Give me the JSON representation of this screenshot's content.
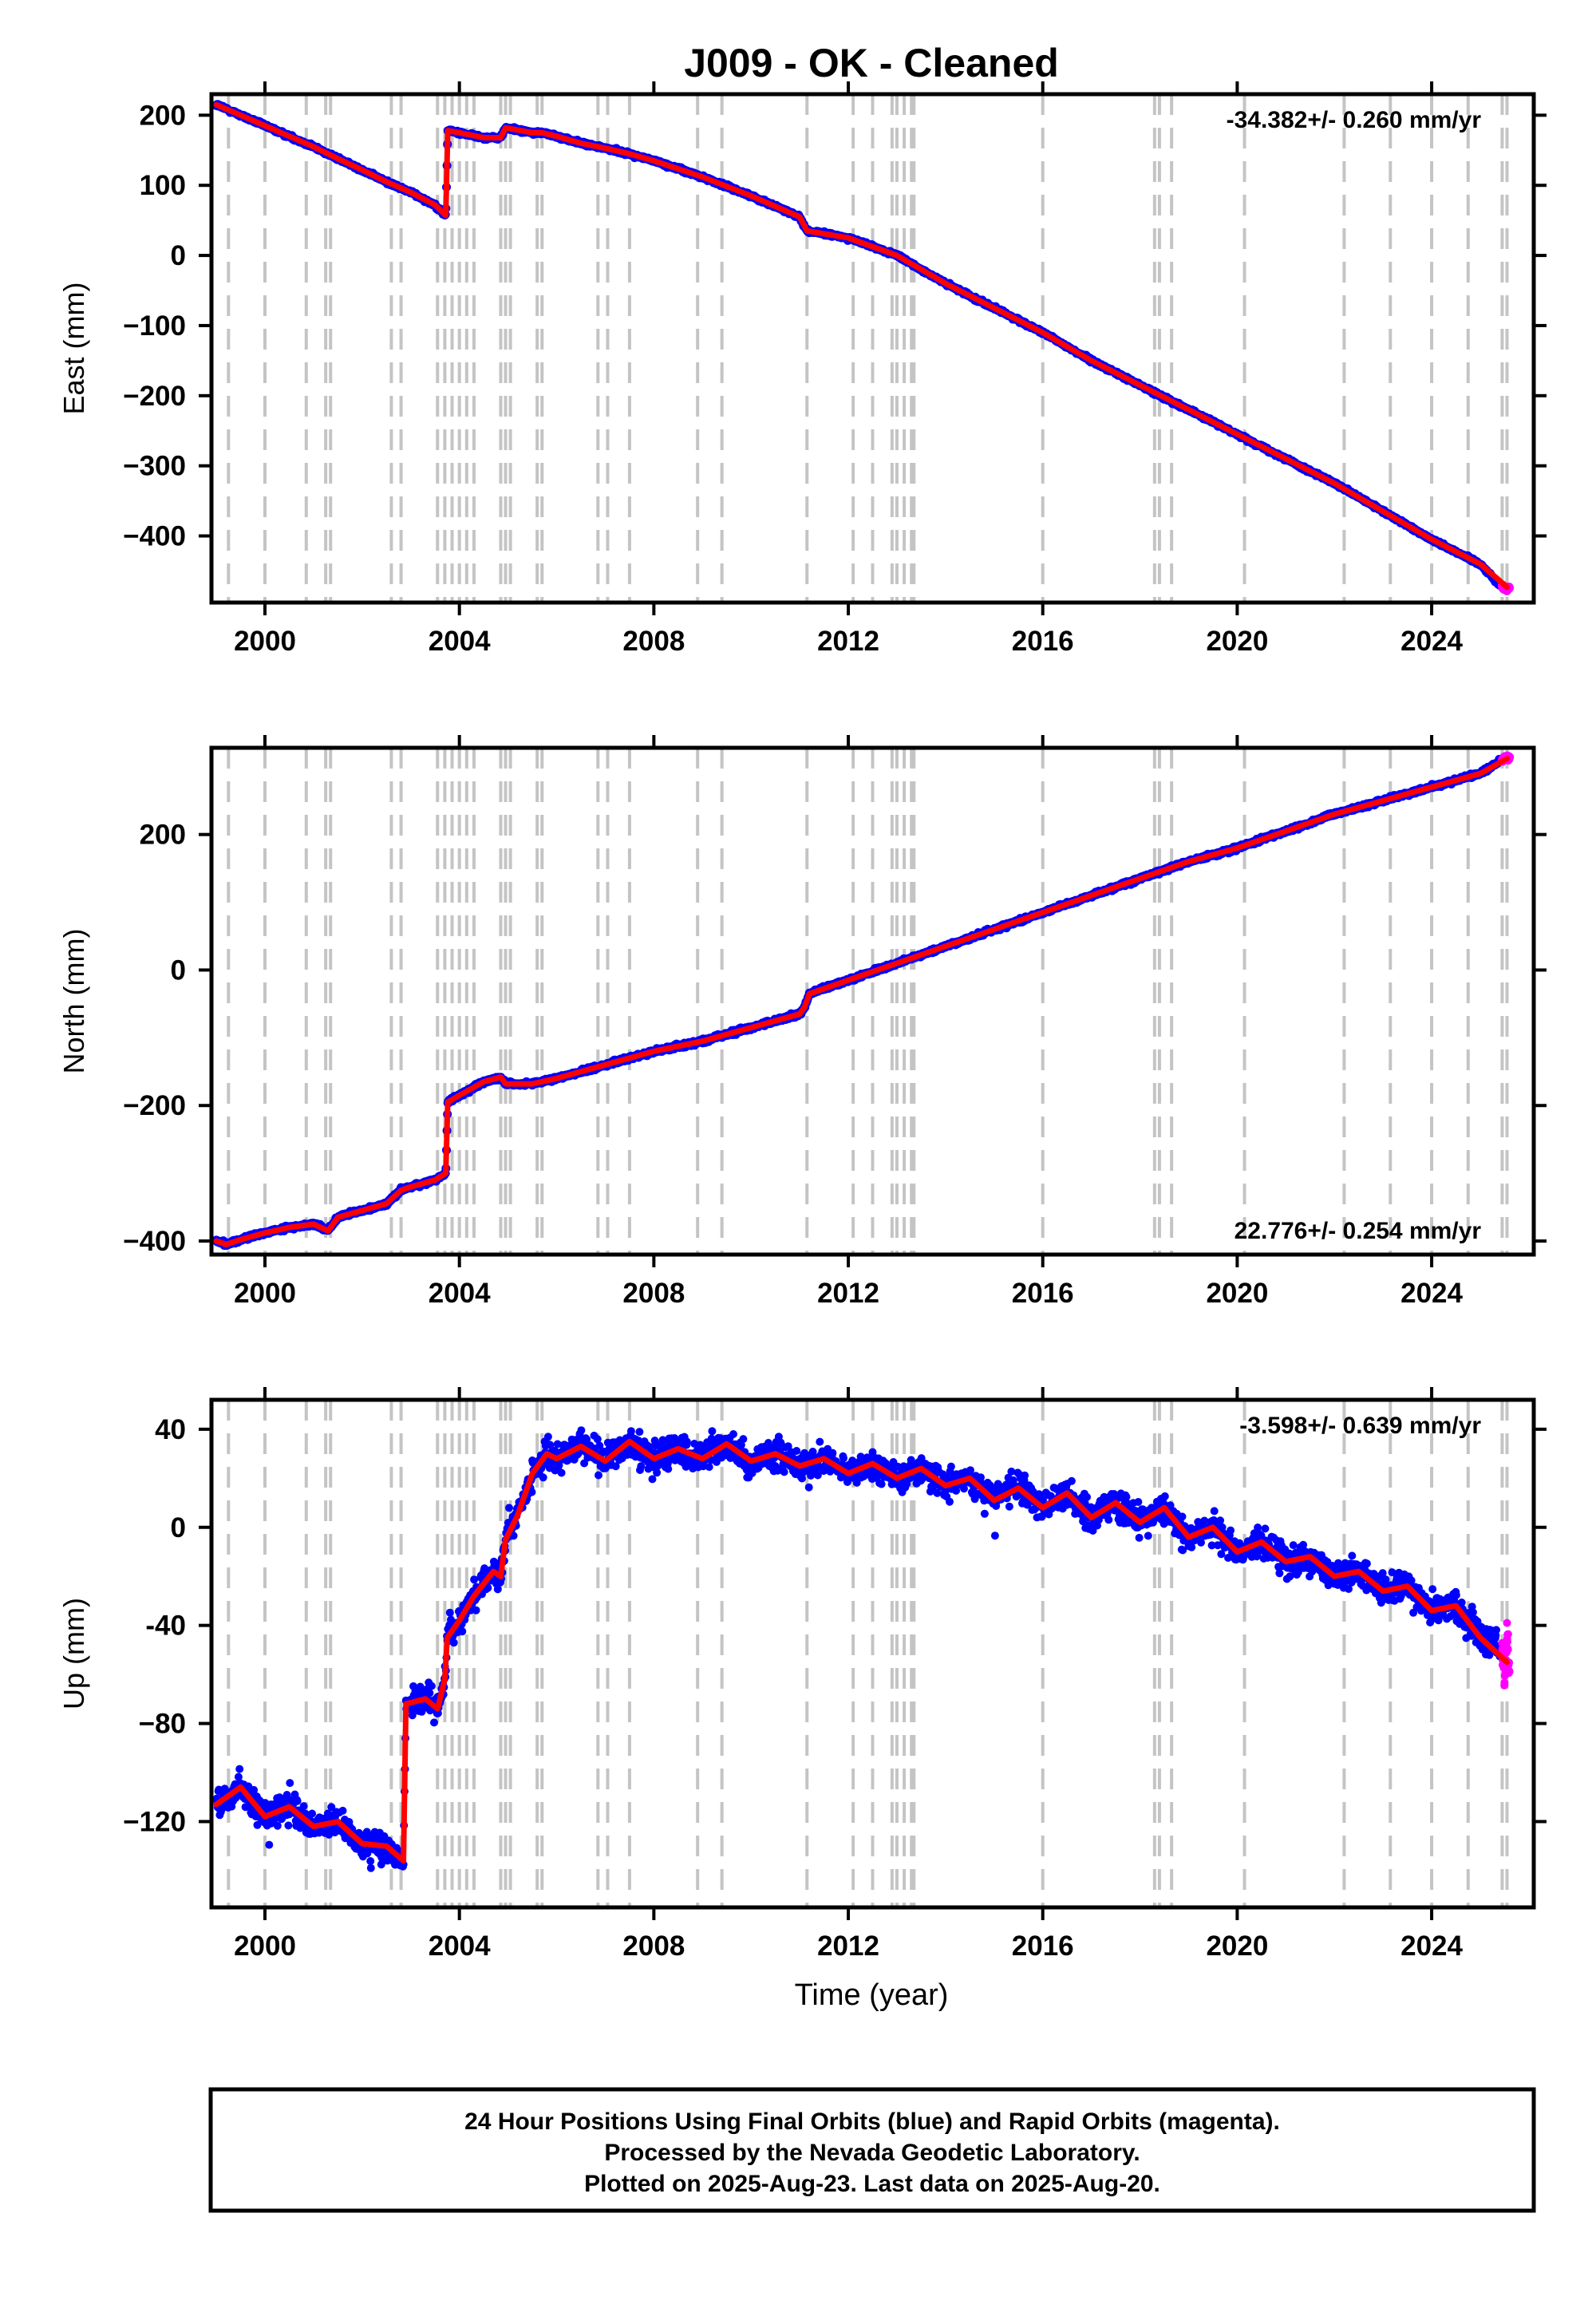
{
  "chart_data": {
    "type": "line",
    "title": "J009  - OK - Cleaned",
    "xlabel": "Time (year)",
    "xlim": [
      1998.9,
      2026.1
    ],
    "xticks": [
      2000,
      2004,
      2008,
      2012,
      2016,
      2020,
      2024
    ],
    "xtick_labels": [
      "2000",
      "2004",
      "2008",
      "2012",
      "2016",
      "2020",
      "2024"
    ],
    "grid": false,
    "event_lines": [
      1999.25,
      2000.0,
      2000.85,
      2001.25,
      2001.35,
      2002.6,
      2002.8,
      2003.55,
      2003.7,
      2003.85,
      2004.0,
      2004.15,
      2004.3,
      2004.85,
      2004.95,
      2005.05,
      2005.6,
      2005.7,
      2006.85,
      2007.05,
      2007.5,
      2008.9,
      2009.4,
      2011.15,
      2012.1,
      2012.5,
      2012.9,
      2013.0,
      2013.15,
      2013.3,
      2013.35,
      2016.0,
      2018.3,
      2018.4,
      2018.65,
      2020.15,
      2022.2,
      2023.15,
      2024.0,
      2024.75,
      2025.45,
      2025.55
    ],
    "panels": [
      {
        "id": "east",
        "ylabel": "East (mm)",
        "ylim": [
          -495,
          230
        ],
        "yticks": [
          200,
          100,
          0,
          -100,
          -200,
          -300,
          -400
        ],
        "ytick_labels": [
          "200",
          "100",
          "0",
          "−100",
          "−200",
          "−300",
          "−400"
        ],
        "rate_text": "-34.382+/- 0.260 mm/yr",
        "rate_position": "top-right",
        "series": [
          {
            "name": "Final Orbits",
            "color": "#0000ff",
            "scatter": 2.4,
            "x": [
              1999.0,
              1999.5,
              2000.0,
              2000.5,
              2001.0,
              2001.5,
              2002.0,
              2002.5,
              2003.0,
              2003.5,
              2003.72,
              2003.76,
              2004.0,
              2004.5,
              2004.85,
              2004.95,
              2005.5,
              2005.7,
              2006.0,
              2006.5,
              2007.0,
              2007.5,
              2008.0,
              2009.0,
              2010.0,
              2011.0,
              2011.15,
              2012.0,
              2013.0,
              2014.0,
              2015.0,
              2016.0,
              2017.0,
              2018.0,
              2019.0,
              2020.0,
              2021.0,
              2022.0,
              2023.0,
              2024.0,
              2025.0,
              2025.4
            ],
            "y": [
              215,
              200,
              185,
              170,
              155,
              138,
              122,
              105,
              90,
              72,
              57,
              178,
              175,
              168,
              168,
              182,
              175,
              175,
              170,
              160,
              153,
              145,
              135,
              112,
              85,
              55,
              35,
              25,
              0,
              -40,
              -75,
              -110,
              -150,
              -185,
              -220,
              -255,
              -290,
              -325,
              -365,
              -405,
              -440,
              -470
            ]
          },
          {
            "name": "Rapid Orbits",
            "color": "#ff00ff",
            "scatter": 3,
            "x": [
              2025.45,
              2025.5,
              2025.55,
              2025.6
            ],
            "y": [
              -472,
              -474,
              -475,
              -473
            ]
          }
        ],
        "model": {
          "color": "#ff0000",
          "x": [
            1999.0,
            1999.5,
            2000.0,
            2000.5,
            2001.0,
            2001.5,
            2002.0,
            2002.5,
            2003.0,
            2003.5,
            2003.72,
            2003.76,
            2004.0,
            2004.5,
            2004.85,
            2004.95,
            2005.5,
            2005.7,
            2006.0,
            2006.5,
            2007.0,
            2007.5,
            2008.0,
            2009.0,
            2010.0,
            2011.0,
            2011.15,
            2012.0,
            2013.0,
            2014.0,
            2015.0,
            2016.0,
            2017.0,
            2018.0,
            2019.0,
            2020.0,
            2021.0,
            2022.0,
            2023.0,
            2024.0,
            2025.0,
            2025.55
          ],
          "y": [
            215,
            200,
            185,
            170,
            155,
            138,
            122,
            105,
            90,
            72,
            57,
            178,
            175,
            168,
            168,
            182,
            175,
            175,
            170,
            160,
            153,
            145,
            135,
            112,
            85,
            55,
            35,
            25,
            0,
            -40,
            -75,
            -110,
            -150,
            -185,
            -220,
            -255,
            -290,
            -325,
            -365,
            -405,
            -440,
            -473
          ]
        }
      },
      {
        "id": "north",
        "ylabel": "North (mm)",
        "ylim": [
          -420,
          328
        ],
        "yticks": [
          200,
          0,
          -200,
          -400
        ],
        "ytick_labels": [
          "200",
          "0",
          "−200",
          "−400"
        ],
        "rate_text": "22.776+/- 0.254 mm/yr",
        "rate_position": "bottom-right",
        "series": [
          {
            "name": "Final Orbits",
            "color": "#0000ff",
            "scatter": 3,
            "x": [
              1999.0,
              1999.2,
              1999.5,
              2000.0,
              2000.5,
              2001.0,
              2001.3,
              2001.5,
              2002.0,
              2002.5,
              2002.8,
              2003.0,
              2003.5,
              2003.72,
              2003.76,
              2004.0,
              2004.5,
              2004.85,
              2004.95,
              2005.5,
              2006.0,
              2007.0,
              2008.0,
              2009.0,
              2010.0,
              2011.0,
              2011.1,
              2011.2,
              2012.0,
              2013.0,
              2014.0,
              2015.0,
              2016.0,
              2017.0,
              2018.0,
              2019.0,
              2020.0,
              2021.0,
              2022.0,
              2023.0,
              2024.0,
              2025.0,
              2025.4
            ],
            "y": [
              -400,
              -405,
              -398,
              -388,
              -380,
              -375,
              -385,
              -365,
              -355,
              -345,
              -325,
              -320,
              -310,
              -300,
              -195,
              -185,
              -165,
              -158,
              -168,
              -168,
              -160,
              -140,
              -120,
              -105,
              -85,
              -65,
              -55,
              -35,
              -15,
              10,
              35,
              60,
              85,
              110,
              135,
              160,
              180,
              205,
              230,
              250,
              270,
              290,
              308
            ]
          },
          {
            "name": "Rapid Orbits",
            "color": "#ff00ff",
            "scatter": 3,
            "x": [
              2025.45,
              2025.5,
              2025.55,
              2025.6
            ],
            "y": [
              310,
              312,
              314,
              313
            ]
          }
        ],
        "model": {
          "color": "#ff0000",
          "x": [
            1999.0,
            1999.2,
            1999.5,
            2000.0,
            2000.5,
            2001.0,
            2001.3,
            2001.5,
            2002.0,
            2002.5,
            2002.8,
            2003.0,
            2003.5,
            2003.72,
            2003.76,
            2004.0,
            2004.5,
            2004.85,
            2004.95,
            2005.5,
            2006.0,
            2007.0,
            2008.0,
            2009.0,
            2010.0,
            2011.0,
            2011.1,
            2011.2,
            2012.0,
            2013.0,
            2014.0,
            2015.0,
            2016.0,
            2017.0,
            2018.0,
            2019.0,
            2020.0,
            2021.0,
            2022.0,
            2023.0,
            2024.0,
            2025.0,
            2025.55
          ],
          "y": [
            -400,
            -405,
            -398,
            -388,
            -380,
            -375,
            -385,
            -365,
            -355,
            -345,
            -325,
            -320,
            -310,
            -300,
            -195,
            -185,
            -165,
            -158,
            -168,
            -168,
            -160,
            -140,
            -120,
            -105,
            -85,
            -65,
            -55,
            -35,
            -15,
            10,
            35,
            60,
            85,
            110,
            135,
            160,
            180,
            205,
            230,
            250,
            270,
            290,
            312
          ]
        }
      },
      {
        "id": "up",
        "ylabel": "Up (mm)",
        "ylim": [
          -155,
          52
        ],
        "yticks": [
          40,
          0,
          -40,
          -80,
          -120
        ],
        "ytick_labels": [
          "40",
          "0",
          "-40",
          "−80",
          "−120"
        ],
        "rate_text": "-3.598+/- 0.639 mm/yr",
        "rate_position": "top-right",
        "series": [
          {
            "name": "Final Orbits",
            "color": "#0000ff",
            "scatter": 6,
            "x": [
              1999.0,
              1999.5,
              2000.0,
              2000.5,
              2001.0,
              2001.5,
              2002.0,
              2002.5,
              2002.85,
              2002.9,
              2003.3,
              2003.55,
              2003.7,
              2003.75,
              2004.0,
              2004.3,
              2004.7,
              2004.85,
              2004.95,
              2005.2,
              2005.5,
              2005.8,
              2006.0,
              2006.5,
              2007.0,
              2007.5,
              2008.0,
              2008.5,
              2009.0,
              2009.5,
              2010.0,
              2010.5,
              2011.0,
              2011.5,
              2012.0,
              2012.5,
              2013.0,
              2013.5,
              2014.0,
              2014.5,
              2015.0,
              2015.5,
              2016.0,
              2016.5,
              2017.0,
              2017.5,
              2018.0,
              2018.5,
              2019.0,
              2019.5,
              2020.0,
              2020.5,
              2021.0,
              2021.5,
              2022.0,
              2022.5,
              2023.0,
              2023.5,
              2024.0,
              2024.5,
              2025.0,
              2025.4
            ],
            "y": [
              -113,
              -106,
              -118,
              -114,
              -122,
              -120,
              -129,
              -130,
              -136,
              -72,
              -70,
              -74,
              -62,
              -45,
              -38,
              -28,
              -18,
              -20,
              -5,
              5,
              22,
              30,
              28,
              33,
              27,
              35,
              28,
              32,
              28,
              34,
              27,
              30,
              25,
              28,
              22,
              26,
              20,
              24,
              17,
              20,
              11,
              16,
              8,
              14,
              4,
              10,
              2,
              8,
              -4,
              0,
              -10,
              -6,
              -14,
              -12,
              -20,
              -18,
              -26,
              -24,
              -34,
              -32,
              -45,
              -50
            ]
          },
          {
            "name": "Rapid Orbits",
            "color": "#ff00ff",
            "scatter": 8,
            "x": [
              2025.45,
              2025.5,
              2025.55,
              2025.6
            ],
            "y": [
              -52,
              -60,
              -46,
              -58
            ]
          }
        ],
        "model": {
          "color": "#ff0000",
          "x": [
            1999.0,
            1999.5,
            2000.0,
            2000.5,
            2001.0,
            2001.5,
            2002.0,
            2002.5,
            2002.85,
            2002.9,
            2003.3,
            2003.55,
            2003.7,
            2003.75,
            2004.0,
            2004.3,
            2004.7,
            2004.85,
            2004.95,
            2005.2,
            2005.5,
            2005.8,
            2006.0,
            2006.5,
            2007.0,
            2007.5,
            2008.0,
            2008.5,
            2009.0,
            2009.5,
            2010.0,
            2010.5,
            2011.0,
            2011.5,
            2012.0,
            2012.5,
            2013.0,
            2013.5,
            2014.0,
            2014.5,
            2015.0,
            2015.5,
            2016.0,
            2016.5,
            2017.0,
            2017.5,
            2018.0,
            2018.5,
            2019.0,
            2019.5,
            2020.0,
            2020.5,
            2021.0,
            2021.5,
            2022.0,
            2022.5,
            2023.0,
            2023.5,
            2024.0,
            2024.5,
            2025.0,
            2025.55
          ],
          "y": [
            -113,
            -106,
            -118,
            -114,
            -122,
            -120,
            -129,
            -130,
            -136,
            -72,
            -70,
            -74,
            -62,
            -45,
            -38,
            -28,
            -18,
            -20,
            -5,
            5,
            22,
            30,
            28,
            33,
            27,
            35,
            28,
            32,
            28,
            34,
            27,
            30,
            25,
            28,
            22,
            26,
            20,
            24,
            17,
            20,
            11,
            16,
            8,
            14,
            4,
            10,
            2,
            8,
            -4,
            0,
            -10,
            -6,
            -14,
            -12,
            -20,
            -18,
            -26,
            -24,
            -34,
            -32,
            -45,
            -55
          ]
        }
      }
    ],
    "footnote": [
      "24 Hour Positions Using Final Orbits (blue) and Rapid Orbits (magenta).",
      "Processed by the Nevada Geodetic Laboratory.",
      "Plotted on 2025-Aug-23. Last data on 2025-Aug-20."
    ]
  }
}
